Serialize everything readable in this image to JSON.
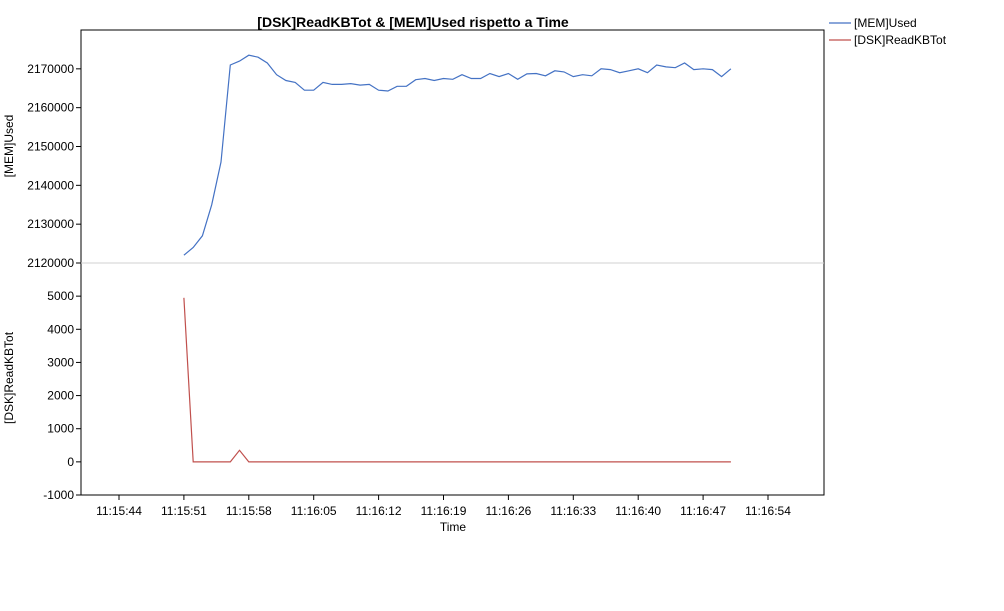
{
  "chart_data": {
    "type": "line",
    "title": "[DSK]ReadKBTot & [MEM]Used rispetto a Time",
    "xlabel": "Time",
    "x_tick_labels": [
      "11:15:44",
      "11:15:51",
      "11:15:58",
      "11:16:05",
      "11:16:12",
      "11:16:19",
      "11:16:26",
      "11:16:33",
      "11:16:40",
      "11:16:47",
      "11:16:54"
    ],
    "legend": {
      "position": "top-right",
      "entries": [
        "[MEM]Used",
        "[DSK]ReadKBTot"
      ]
    },
    "panels": [
      {
        "ylabel": "[MEM]Used",
        "ylim": [
          2120000,
          2180000
        ],
        "y_ticks": [
          2120000,
          2130000,
          2140000,
          2150000,
          2160000,
          2170000
        ],
        "series": [
          {
            "name": "[MEM]Used",
            "color": "#4472c4",
            "x": [
              "11:15:51",
              "11:15:52",
              "11:15:53",
              "11:15:54",
              "11:15:55",
              "11:15:56",
              "11:15:57",
              "11:15:58",
              "11:15:59",
              "11:16:00",
              "11:16:01",
              "11:16:02",
              "11:16:03",
              "11:16:04",
              "11:16:05",
              "11:16:06",
              "11:16:07",
              "11:16:08",
              "11:16:09",
              "11:16:10",
              "11:16:11",
              "11:16:12",
              "11:16:13",
              "11:16:14",
              "11:16:15",
              "11:16:16",
              "11:16:17",
              "11:16:18",
              "11:16:19",
              "11:16:20",
              "11:16:21",
              "11:16:22",
              "11:16:23",
              "11:16:24",
              "11:16:25",
              "11:16:26",
              "11:16:27",
              "11:16:28",
              "11:16:29",
              "11:16:30",
              "11:16:31",
              "11:16:32",
              "11:16:33",
              "11:16:34",
              "11:16:35",
              "11:16:36",
              "11:16:37",
              "11:16:38",
              "11:16:39",
              "11:16:40",
              "11:16:41",
              "11:16:42",
              "11:16:43",
              "11:16:44",
              "11:16:45",
              "11:16:46",
              "11:16:47",
              "11:16:48",
              "11:16:49",
              "11:16:50"
            ],
            "y": [
              2122000,
              2124000,
              2127000,
              2135000,
              2146000,
              2171000,
              2172000,
              2173500,
              2173000,
              2171500,
              2168500,
              2167000,
              2166500,
              2164500,
              2164500,
              2166500,
              2166000,
              2166000,
              2166200,
              2165800,
              2166000,
              2164500,
              2164300,
              2165500,
              2165500,
              2167200,
              2167500,
              2167000,
              2167500,
              2167300,
              2168500,
              2167500,
              2167500,
              2168800,
              2168000,
              2168800,
              2167300,
              2168700,
              2168800,
              2168200,
              2169500,
              2169200,
              2168000,
              2168500,
              2168200,
              2170000,
              2169800,
              2169000,
              2169500,
              2170000,
              2169000,
              2171000,
              2170500,
              2170300,
              2171500,
              2169800,
              2170000,
              2169800,
              2168000,
              2170000
            ]
          }
        ]
      },
      {
        "ylabel": "[DSK]ReadKBTot",
        "ylim": [
          -1000,
          6000
        ],
        "y_ticks": [
          -1000,
          0,
          1000,
          2000,
          3000,
          4000,
          5000
        ],
        "series": [
          {
            "name": "[DSK]ReadKBTot",
            "color": "#c0504d",
            "x": [
              "11:15:51",
              "11:15:52",
              "11:15:53",
              "11:15:54",
              "11:15:55",
              "11:15:56",
              "11:15:57",
              "11:15:58",
              "11:16:00",
              "11:16:10",
              "11:16:20",
              "11:16:30",
              "11:16:40",
              "11:16:50"
            ],
            "y": [
              4950,
              0,
              0,
              0,
              0,
              0,
              350,
              0,
              0,
              0,
              0,
              0,
              0,
              0
            ]
          }
        ]
      }
    ]
  }
}
